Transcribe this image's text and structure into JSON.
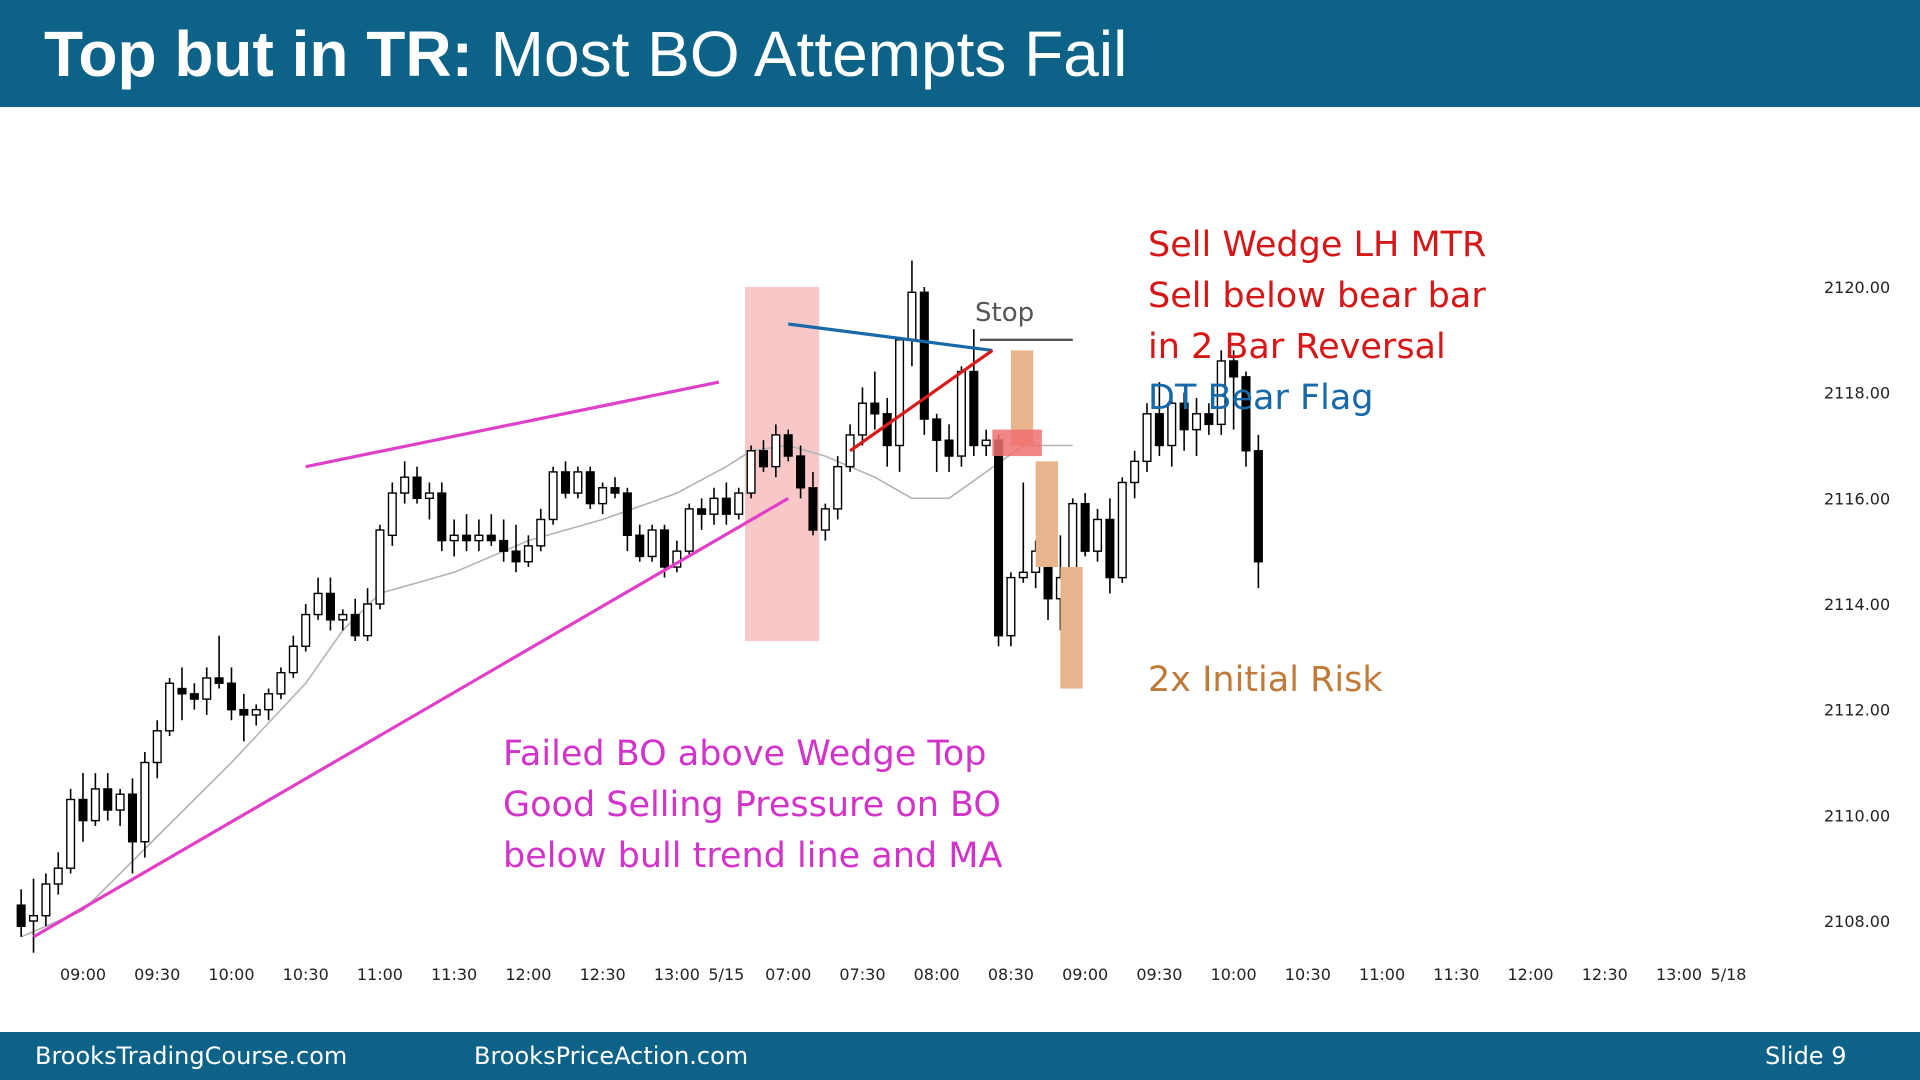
{
  "slide": {
    "title_bold": "Top but in TR:",
    "title_rest": " Most BO Attempts Fail",
    "footer_left": "BrooksTradingCourse.com",
    "footer_center": "BrooksPriceAction.com",
    "footer_right": "Slide  9"
  },
  "colors": {
    "header": "#0d6287",
    "up_bar": "#ffffff",
    "down_bar": "#000000",
    "moving_average": "#b3b3b3",
    "wedge_lines": "#e040c8",
    "lower_high_line": "#1769aa",
    "bull_leg_line": "#d81a1a",
    "pressure_zone": "#f8c8c8",
    "entry_zone": "#f07070",
    "risk_boxes": "#e8b48e",
    "stop_line": "#555555"
  },
  "annotations": {
    "stop": "Stop",
    "sell_lines": [
      "Sell Wedge LH MTR",
      "Sell below bear bar",
      "in 2 Bar Reversal"
    ],
    "dt_line": "DT Bear Flag",
    "risk_line": "2x Initial Risk",
    "failed_lines": [
      "Failed BO above Wedge Top",
      "Good Selling Pressure on BO",
      "below bull trend line and MA"
    ]
  },
  "chart_data": {
    "type": "candlestick",
    "title": "",
    "x_tick_labels": [
      "09:00",
      "09:30",
      "10:00",
      "10:30",
      "11:00",
      "11:30",
      "12:00",
      "12:30",
      "13:00",
      "5/15",
      "07:00",
      "07:30",
      "08:00",
      "08:30",
      "09:00",
      "09:30",
      "10:00",
      "10:30",
      "11:00",
      "11:30",
      "12:00",
      "12:30",
      "13:00",
      "5/18"
    ],
    "x_tick_bar_index": [
      6,
      12,
      18,
      24,
      30,
      36,
      42,
      48,
      54,
      58,
      63,
      69,
      75,
      81,
      87,
      93,
      99,
      105,
      111,
      117,
      123,
      129,
      135,
      139
    ],
    "y_tick_labels": [
      "2120.00",
      "2118.00",
      "2116.00",
      "2114.00",
      "2112.00",
      "2110.00",
      "2108.00"
    ],
    "ylim": [
      2107.5,
      2120.7
    ],
    "bar_count_axis": 141,
    "bars_ohlc": [
      [
        2108.3,
        2108.6,
        2107.7,
        2107.9
      ],
      [
        2108.0,
        2108.8,
        2107.4,
        2108.1
      ],
      [
        2108.1,
        2108.9,
        2107.9,
        2108.7
      ],
      [
        2108.7,
        2109.3,
        2108.5,
        2109.0
      ],
      [
        2109.0,
        2110.5,
        2108.9,
        2110.3
      ],
      [
        2110.3,
        2110.8,
        2109.5,
        2109.9
      ],
      [
        2109.9,
        2110.8,
        2109.8,
        2110.5
      ],
      [
        2110.5,
        2110.8,
        2109.9,
        2110.1
      ],
      [
        2110.1,
        2110.5,
        2109.8,
        2110.4
      ],
      [
        2110.4,
        2110.7,
        2108.9,
        2109.5
      ],
      [
        2109.5,
        2111.2,
        2109.2,
        2111.0
      ],
      [
        2111.0,
        2111.8,
        2110.7,
        2111.6
      ],
      [
        2111.6,
        2112.6,
        2111.5,
        2112.5
      ],
      [
        2112.4,
        2112.8,
        2111.8,
        2112.3
      ],
      [
        2112.3,
        2112.5,
        2112.0,
        2112.2
      ],
      [
        2112.2,
        2112.8,
        2111.9,
        2112.6
      ],
      [
        2112.6,
        2113.4,
        2112.4,
        2112.5
      ],
      [
        2112.5,
        2112.8,
        2111.8,
        2112.0
      ],
      [
        2112.0,
        2112.3,
        2111.4,
        2111.9
      ],
      [
        2111.9,
        2112.1,
        2111.7,
        2112.0
      ],
      [
        2112.0,
        2112.4,
        2111.8,
        2112.3
      ],
      [
        2112.3,
        2112.8,
        2112.2,
        2112.7
      ],
      [
        2112.7,
        2113.4,
        2112.6,
        2113.2
      ],
      [
        2113.2,
        2114.0,
        2113.1,
        2113.8
      ],
      [
        2113.8,
        2114.5,
        2113.7,
        2114.2
      ],
      [
        2114.2,
        2114.5,
        2113.5,
        2113.7
      ],
      [
        2113.7,
        2113.9,
        2113.5,
        2113.8
      ],
      [
        2113.8,
        2114.1,
        2113.3,
        2113.4
      ],
      [
        2113.4,
        2114.3,
        2113.3,
        2114.0
      ],
      [
        2114.0,
        2115.5,
        2113.9,
        2115.4
      ],
      [
        2115.3,
        2116.3,
        2115.1,
        2116.1
      ],
      [
        2116.1,
        2116.7,
        2115.9,
        2116.4
      ],
      [
        2116.4,
        2116.6,
        2115.9,
        2116.0
      ],
      [
        2116.0,
        2116.3,
        2115.6,
        2116.1
      ],
      [
        2116.1,
        2116.3,
        2115.0,
        2115.2
      ],
      [
        2115.2,
        2115.6,
        2114.9,
        2115.3
      ],
      [
        2115.3,
        2115.7,
        2115.0,
        2115.2
      ],
      [
        2115.2,
        2115.6,
        2115.0,
        2115.3
      ],
      [
        2115.3,
        2115.7,
        2115.1,
        2115.2
      ],
      [
        2115.2,
        2115.6,
        2114.8,
        2115.0
      ],
      [
        2115.0,
        2115.5,
        2114.6,
        2114.8
      ],
      [
        2114.8,
        2115.3,
        2114.7,
        2115.1
      ],
      [
        2115.1,
        2115.8,
        2115.0,
        2115.6
      ],
      [
        2115.6,
        2116.6,
        2115.5,
        2116.5
      ],
      [
        2116.5,
        2116.7,
        2116.0,
        2116.1
      ],
      [
        2116.1,
        2116.6,
        2116.0,
        2116.5
      ],
      [
        2116.5,
        2116.6,
        2115.8,
        2115.9
      ],
      [
        2115.9,
        2116.3,
        2115.7,
        2116.2
      ],
      [
        2116.2,
        2116.4,
        2116.0,
        2116.1
      ],
      [
        2116.1,
        2116.2,
        2115.0,
        2115.3
      ],
      [
        2115.3,
        2115.5,
        2114.8,
        2114.9
      ],
      [
        2114.9,
        2115.5,
        2114.8,
        2115.4
      ],
      [
        2115.4,
        2115.5,
        2114.5,
        2114.7
      ],
      [
        2114.7,
        2115.2,
        2114.6,
        2115.0
      ],
      [
        2115.0,
        2115.9,
        2114.9,
        2115.8
      ],
      [
        2115.8,
        2116.0,
        2115.4,
        2115.7
      ],
      [
        2115.7,
        2116.2,
        2115.5,
        2116.0
      ],
      [
        2116.0,
        2116.3,
        2115.5,
        2115.7
      ],
      [
        2115.7,
        2116.2,
        2115.6,
        2116.1
      ],
      [
        2116.1,
        2117.0,
        2116.0,
        2116.9
      ],
      [
        2116.9,
        2117.1,
        2116.5,
        2116.6
      ],
      [
        2116.6,
        2117.4,
        2116.4,
        2117.2
      ],
      [
        2117.2,
        2117.3,
        2116.7,
        2116.8
      ],
      [
        2116.8,
        2117.0,
        2116.0,
        2116.2
      ],
      [
        2116.2,
        2116.5,
        2115.3,
        2115.4
      ],
      [
        2115.4,
        2115.9,
        2115.2,
        2115.8
      ],
      [
        2115.8,
        2116.8,
        2115.6,
        2116.6
      ],
      [
        2116.6,
        2117.4,
        2116.5,
        2117.2
      ],
      [
        2117.2,
        2118.1,
        2117.0,
        2117.8
      ],
      [
        2117.8,
        2118.4,
        2117.3,
        2117.6
      ],
      [
        2117.6,
        2117.9,
        2116.6,
        2117.0
      ],
      [
        2117.0,
        2119.0,
        2116.5,
        2119.0
      ],
      [
        2119.0,
        2120.5,
        2118.5,
        2119.9
      ],
      [
        2119.9,
        2120.0,
        2117.2,
        2117.5
      ],
      [
        2117.5,
        2117.6,
        2116.5,
        2117.1
      ],
      [
        2117.1,
        2117.4,
        2116.5,
        2116.8
      ],
      [
        2116.8,
        2118.5,
        2116.6,
        2118.4
      ],
      [
        2118.4,
        2119.2,
        2116.8,
        2117.0
      ],
      [
        2117.0,
        2117.3,
        2116.8,
        2117.1
      ],
      [
        2117.1,
        2117.2,
        2113.2,
        2113.4
      ],
      [
        2113.4,
        2114.6,
        2113.2,
        2114.5
      ],
      [
        2114.5,
        2116.3,
        2114.4,
        2114.6
      ],
      [
        2114.6,
        2115.2,
        2114.3,
        2115.0
      ],
      [
        2115.0,
        2115.3,
        2113.7,
        2114.1
      ],
      [
        2114.1,
        2115.3,
        2113.5,
        2114.5
      ],
      [
        2114.5,
        2116.0,
        2114.4,
        2115.9
      ],
      [
        2115.9,
        2116.1,
        2114.9,
        2115.0
      ],
      [
        2115.0,
        2115.8,
        2114.8,
        2115.6
      ],
      [
        2115.6,
        2116.0,
        2114.2,
        2114.5
      ],
      [
        2114.5,
        2116.4,
        2114.4,
        2116.3
      ],
      [
        2116.3,
        2116.9,
        2116.0,
        2116.7
      ],
      [
        2116.7,
        2117.8,
        2116.5,
        2117.6
      ],
      [
        2117.6,
        2118.2,
        2116.8,
        2117.0
      ],
      [
        2117.0,
        2117.9,
        2116.6,
        2117.8
      ],
      [
        2117.8,
        2118.0,
        2116.9,
        2117.3
      ],
      [
        2117.3,
        2117.9,
        2116.8,
        2117.6
      ],
      [
        2117.6,
        2117.8,
        2117.2,
        2117.4
      ],
      [
        2117.4,
        2118.8,
        2117.2,
        2118.6
      ],
      [
        2118.6,
        2118.8,
        2117.3,
        2118.3
      ],
      [
        2118.3,
        2118.4,
        2116.6,
        2116.9
      ],
      [
        2116.9,
        2117.2,
        2114.3,
        2114.8
      ]
    ],
    "first_bar_index": 1,
    "moving_average": [
      [
        1,
        2107.7
      ],
      [
        6,
        2108.2
      ],
      [
        12,
        2109.6
      ],
      [
        18,
        2111.0
      ],
      [
        24,
        2112.5
      ],
      [
        27,
        2113.5
      ],
      [
        30,
        2114.2
      ],
      [
        36,
        2114.6
      ],
      [
        42,
        2115.2
      ],
      [
        48,
        2115.6
      ],
      [
        54,
        2116.1
      ],
      [
        58,
        2116.6
      ],
      [
        60,
        2116.9
      ],
      [
        63,
        2117.0
      ],
      [
        66,
        2116.8
      ],
      [
        70,
        2116.4
      ],
      [
        73,
        2116.0
      ],
      [
        76,
        2116.0
      ],
      [
        79,
        2116.5
      ],
      [
        82,
        2117.0
      ],
      [
        86,
        2117.0
      ]
    ],
    "overlays": {
      "pressure_zone": {
        "from_bar": 59.5,
        "to_bar": 65.5,
        "top": 2120.0,
        "bottom": 2113.3
      },
      "entry_zone": {
        "from_bar": 79.5,
        "to_bar": 83.5,
        "top": 2117.3,
        "bottom": 2116.8
      },
      "stop": {
        "from_bar": 78.5,
        "to_bar": 86.0,
        "price": 2119.0
      },
      "risk_boxes": [
        {
          "from_bar": 81.0,
          "to_bar": 82.8,
          "top": 2118.8,
          "bottom": 2117.0
        },
        {
          "from_bar": 83.0,
          "to_bar": 84.8,
          "top": 2116.7,
          "bottom": 2114.7
        },
        {
          "from_bar": 85.0,
          "to_bar": 86.8,
          "top": 2114.7,
          "bottom": 2112.4
        }
      ],
      "wedge_upper_line": {
        "from": [
          24,
          2116.6
        ],
        "to": [
          57.4,
          2118.2
        ]
      },
      "bull_trend_line": {
        "from": [
          2,
          2107.7
        ],
        "to": [
          63,
          2116.0
        ]
      },
      "lower_high_line": {
        "from": [
          63,
          2119.3
        ],
        "to": [
          79.5,
          2118.8
        ]
      },
      "bull_leg_line": {
        "from": [
          68,
          2116.9
        ],
        "to": [
          79.5,
          2118.8
        ]
      }
    }
  }
}
